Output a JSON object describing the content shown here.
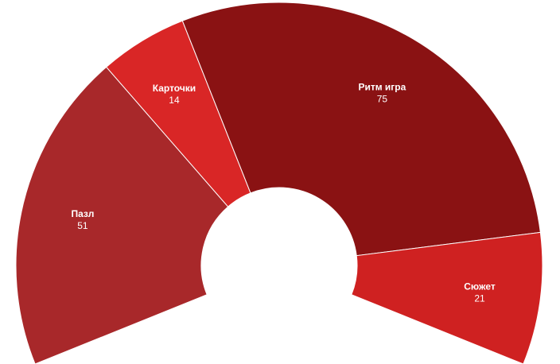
{
  "chart_data": {
    "type": "pie",
    "variant": "semi-donut",
    "categories": [
      "Пазл",
      "Карточки",
      "Ритм игра",
      "Сюжет"
    ],
    "values": [
      51,
      14,
      75,
      21
    ],
    "colors": [
      "#a8282a",
      "#d92626",
      "#8a1213",
      "#cf2121"
    ],
    "legend": "none",
    "data_labels": true
  }
}
